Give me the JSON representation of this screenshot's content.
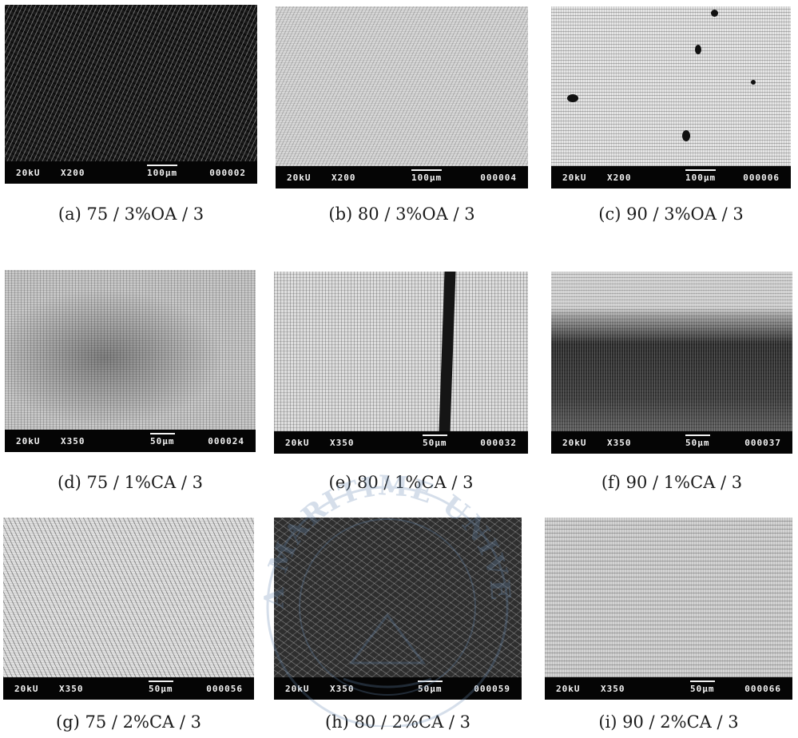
{
  "panels": [
    {
      "id": "a",
      "caption": "(a) 75 / 3%OA / 3",
      "kv": "20kU",
      "mag": "X200",
      "scale": "100μm",
      "number": "000002",
      "texture": "t-dark"
    },
    {
      "id": "b",
      "caption": "(b) 80 / 3%OA / 3",
      "kv": "20kU",
      "mag": "X200",
      "scale": "100μm",
      "number": "000004",
      "texture": "t-light"
    },
    {
      "id": "c",
      "caption": "(c) 90 / 3%OA / 3",
      "kv": "20kU",
      "mag": "X200",
      "scale": "100μm",
      "number": "000006",
      "texture": "t-horiz"
    },
    {
      "id": "d",
      "caption": "(d) 75 / 1%CA / 3",
      "kv": "20kU",
      "mag": "X350",
      "scale": "50μm",
      "number": "000024",
      "texture": "t-mottle"
    },
    {
      "id": "e",
      "caption": "(e) 80 / 1%CA / 3",
      "kv": "20kU",
      "mag": "X350",
      "scale": "50μm",
      "number": "000032",
      "texture": "t-grid"
    },
    {
      "id": "f",
      "caption": "(f) 90 / 1%CA / 3",
      "kv": "20kU",
      "mag": "X350",
      "scale": "50μm",
      "number": "000037",
      "texture": "t-band"
    },
    {
      "id": "g",
      "caption": "(g) 75 / 2%CA / 3",
      "kv": "20kU",
      "mag": "X350",
      "scale": "50μm",
      "number": "000056",
      "texture": "t-diag"
    },
    {
      "id": "h",
      "caption": "(h) 80 / 2%CA / 3",
      "kv": "20kU",
      "mag": "X350",
      "scale": "50μm",
      "number": "000059",
      "texture": "t-net"
    },
    {
      "id": "i",
      "caption": "(i) 90 / 2%CA / 3",
      "kv": "20kU",
      "mag": "X350",
      "scale": "50μm",
      "number": "000066",
      "texture": "t-hl"
    }
  ],
  "watermark": {
    "text": "KOREA MARITIME UNIVERSITY"
  }
}
